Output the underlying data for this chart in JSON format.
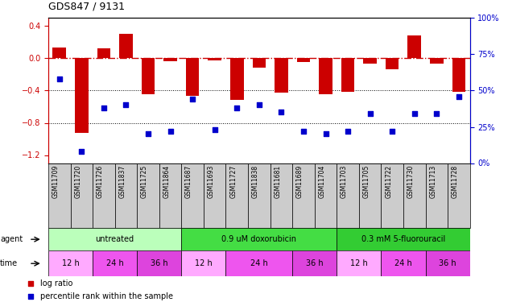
{
  "title": "GDS847 / 9131",
  "samples": [
    "GSM11709",
    "GSM11720",
    "GSM11726",
    "GSM11837",
    "GSM11725",
    "GSM11864",
    "GSM11687",
    "GSM11693",
    "GSM11727",
    "GSM11838",
    "GSM11681",
    "GSM11689",
    "GSM11704",
    "GSM11703",
    "GSM11705",
    "GSM11722",
    "GSM11730",
    "GSM11713",
    "GSM11728"
  ],
  "log_ratio": [
    0.13,
    -0.92,
    0.12,
    0.3,
    -0.45,
    -0.04,
    -0.47,
    -0.03,
    -0.52,
    -0.12,
    -0.43,
    -0.05,
    -0.45,
    -0.42,
    -0.07,
    -0.14,
    0.28,
    -0.07,
    -0.42
  ],
  "percentile": [
    58,
    8,
    38,
    40,
    20,
    22,
    44,
    23,
    38,
    40,
    35,
    22,
    20,
    22,
    34,
    22,
    34,
    34,
    46
  ],
  "bar_color": "#cc0000",
  "dot_color": "#0000cc",
  "ref_line_color": "#cc0000",
  "gridline_color": "#000000",
  "ylim_left": [
    -1.3,
    0.5
  ],
  "ylim_right": [
    0,
    100
  ],
  "yticks_left": [
    -1.2,
    -0.8,
    -0.4,
    0.0,
    0.4
  ],
  "yticks_right": [
    0,
    25,
    50,
    75,
    100
  ],
  "agent_groups": [
    {
      "label": "untreated",
      "start": 0,
      "end": 6,
      "color": "#bbffbb"
    },
    {
      "label": "0.9 uM doxorubicin",
      "start": 6,
      "end": 13,
      "color": "#44dd44"
    },
    {
      "label": "0.3 mM 5-fluorouracil",
      "start": 13,
      "end": 19,
      "color": "#33cc33"
    }
  ],
  "time_groups": [
    {
      "label": "12 h",
      "start": 0,
      "end": 2,
      "color": "#ffaaff"
    },
    {
      "label": "24 h",
      "start": 2,
      "end": 4,
      "color": "#ee55ee"
    },
    {
      "label": "36 h",
      "start": 4,
      "end": 6,
      "color": "#dd44dd"
    },
    {
      "label": "12 h",
      "start": 6,
      "end": 8,
      "color": "#ffaaff"
    },
    {
      "label": "24 h",
      "start": 8,
      "end": 11,
      "color": "#ee55ee"
    },
    {
      "label": "36 h",
      "start": 11,
      "end": 13,
      "color": "#dd44dd"
    },
    {
      "label": "12 h",
      "start": 13,
      "end": 15,
      "color": "#ffaaff"
    },
    {
      "label": "24 h",
      "start": 15,
      "end": 17,
      "color": "#ee55ee"
    },
    {
      "label": "36 h",
      "start": 17,
      "end": 19,
      "color": "#dd44dd"
    }
  ],
  "sample_box_color": "#cccccc",
  "bar_width": 0.6
}
